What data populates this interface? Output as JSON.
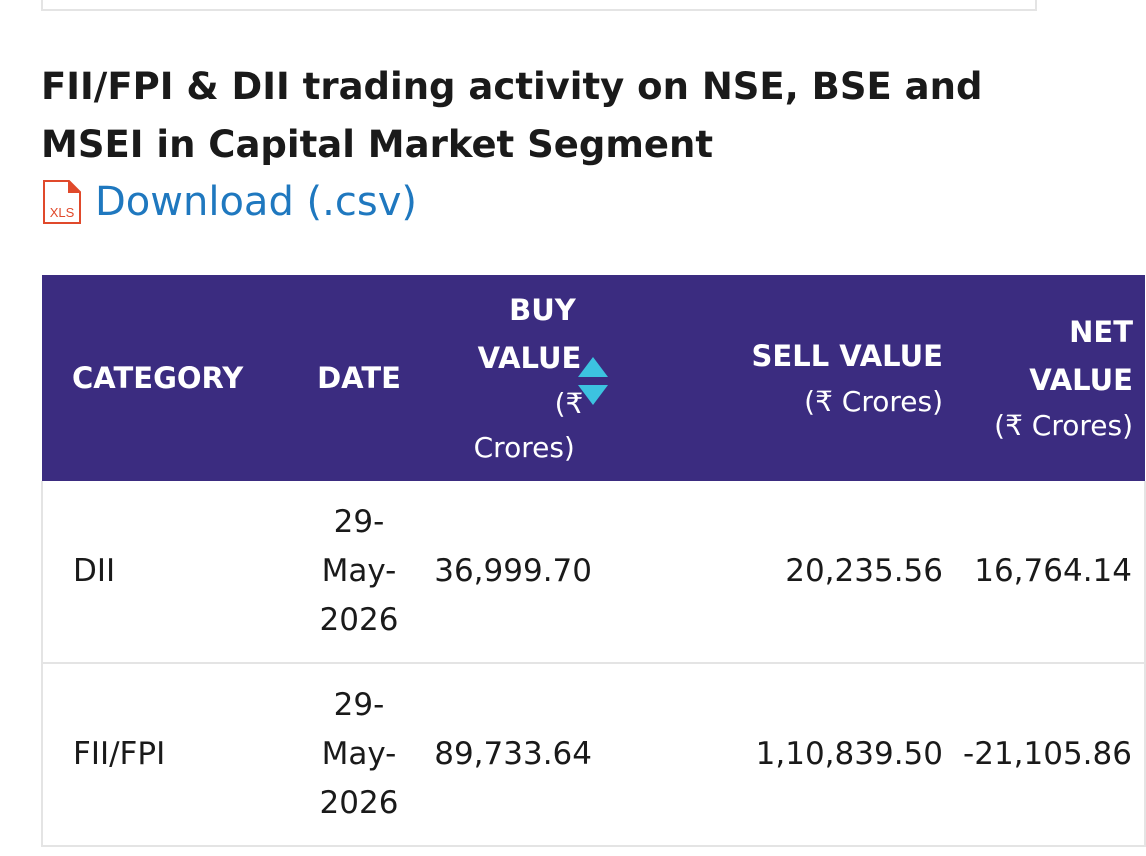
{
  "section": {
    "title": "FII/FPI & DII trading activity on NSE, BSE and MSEI in Capital Market Segment",
    "download_icon_text": "XLS",
    "download_label": "Download (.csv)"
  },
  "table": {
    "headers": {
      "category": "CATEGORY",
      "date": "DATE",
      "buy_line1": "BUY",
      "buy_line2": "VALUE",
      "buy_unit_a": "(₹",
      "buy_unit_b": "Crores)",
      "sell": "SELL VALUE",
      "sell_unit": "(₹ Crores)",
      "net_line1": "NET",
      "net_line2": "VALUE",
      "net_unit": "(₹ Crores)"
    },
    "sort_icon": "sort-up-down-icon",
    "rows": [
      {
        "category": "DII",
        "date_a": "29-",
        "date_b": "May-",
        "date_c": "2026",
        "buy": "36,999.70",
        "sell": "20,235.56",
        "net": "16,764.14"
      },
      {
        "category": "FII/FPI",
        "date_a": "29-",
        "date_b": "May-",
        "date_c": "2026",
        "buy": "89,733.64",
        "sell": "1,10,839.50",
        "net": "-21,105.86"
      }
    ]
  },
  "colors": {
    "header_bg": "#3b2c80",
    "link": "#1f78bf",
    "sort_arrow": "#3cc3e0",
    "xls_icon": "#e0492b"
  }
}
